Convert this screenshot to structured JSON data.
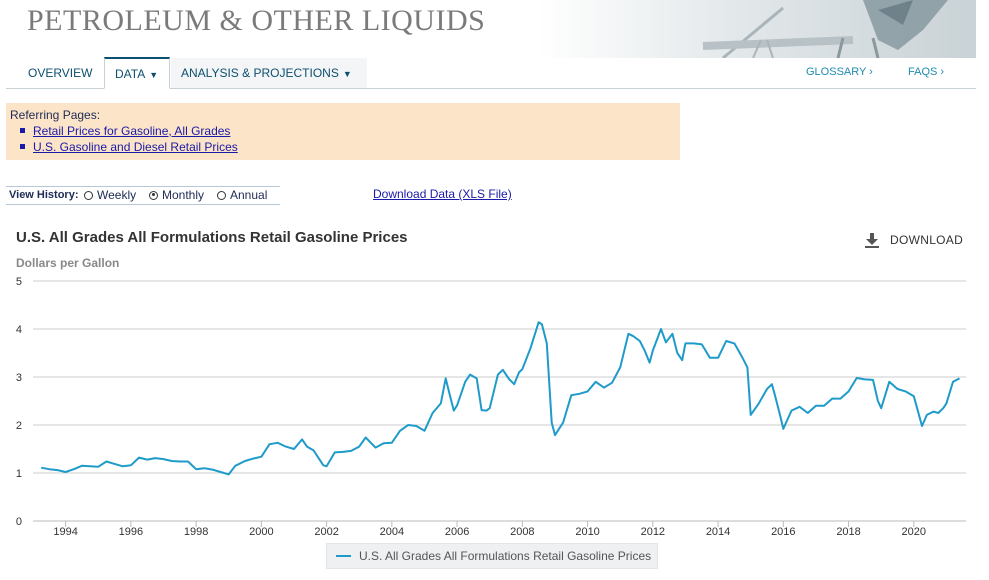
{
  "banner": {
    "title": "PETROLEUM & OTHER LIQUIDS"
  },
  "nav": {
    "tabs": [
      "OVERVIEW",
      "DATA",
      "ANALYSIS & PROJECTIONS"
    ],
    "glossary": "GLOSSARY ›",
    "faqs": "FAQS ›"
  },
  "referring": {
    "heading": "Referring Pages:",
    "links": [
      "Retail Prices for Gasoline, All Grades",
      "U.S. Gasoline and Diesel Retail Prices"
    ]
  },
  "history": {
    "label": "View History:",
    "options": [
      "Weekly",
      "Monthly",
      "Annual"
    ],
    "selected": "Monthly"
  },
  "download_data": "Download Data (XLS File)",
  "download_button": "DOWNLOAD",
  "colors": {
    "series": "#1f9bc9",
    "accent": "#0d4f6e"
  },
  "chart_data": {
    "type": "line",
    "title": "U.S. All Grades All Formulations Retail Gasoline Prices",
    "ylabel": "Dollars per Gallon",
    "xlabel": "",
    "ylim": [
      0,
      5
    ],
    "xlim": [
      1993.0,
      2021.6
    ],
    "yticks": [
      0,
      1,
      2,
      3,
      4,
      5
    ],
    "xticks": [
      1994,
      1996,
      1998,
      2000,
      2002,
      2004,
      2006,
      2008,
      2010,
      2012,
      2014,
      2016,
      2018,
      2020
    ],
    "grid": true,
    "legend": "bottom-center",
    "series": [
      {
        "name": "U.S. All Grades All Formulations Retail Gasoline Prices",
        "x": [
          1993.25,
          1993.5,
          1993.75,
          1994.0,
          1994.25,
          1994.5,
          1994.75,
          1995.0,
          1995.25,
          1995.5,
          1995.75,
          1996.0,
          1996.25,
          1996.5,
          1996.75,
          1997.0,
          1997.25,
          1997.5,
          1997.75,
          1998.0,
          1998.25,
          1998.5,
          1998.75,
          1999.0,
          1999.2,
          1999.5,
          1999.75,
          2000.0,
          2000.25,
          2000.5,
          2000.75,
          2001.0,
          2001.25,
          2001.4,
          2001.6,
          2001.9,
          2002.0,
          2002.25,
          2002.5,
          2002.75,
          2003.0,
          2003.2,
          2003.5,
          2003.75,
          2004.0,
          2004.25,
          2004.5,
          2004.75,
          2005.0,
          2005.25,
          2005.5,
          2005.65,
          2005.75,
          2005.9,
          2006.0,
          2006.25,
          2006.4,
          2006.6,
          2006.75,
          2006.9,
          2007.0,
          2007.25,
          2007.4,
          2007.6,
          2007.75,
          2007.9,
          2008.0,
          2008.25,
          2008.5,
          2008.6,
          2008.75,
          2008.9,
          2009.0,
          2009.25,
          2009.5,
          2009.75,
          2010.0,
          2010.25,
          2010.5,
          2010.75,
          2011.0,
          2011.25,
          2011.4,
          2011.6,
          2011.75,
          2011.9,
          2012.0,
          2012.25,
          2012.4,
          2012.6,
          2012.75,
          2012.9,
          2013.0,
          2013.25,
          2013.5,
          2013.75,
          2014.0,
          2014.25,
          2014.5,
          2014.75,
          2014.9,
          2015.0,
          2015.25,
          2015.5,
          2015.65,
          2015.75,
          2015.9,
          2016.0,
          2016.25,
          2016.5,
          2016.75,
          2017.0,
          2017.25,
          2017.5,
          2017.75,
          2018.0,
          2018.25,
          2018.5,
          2018.75,
          2018.9,
          2019.0,
          2019.25,
          2019.5,
          2019.75,
          2020.0,
          2020.25,
          2020.4,
          2020.6,
          2020.75,
          2020.9,
          2021.0,
          2021.2,
          2021.4
        ],
        "values": [
          1.11,
          1.08,
          1.06,
          1.02,
          1.08,
          1.15,
          1.14,
          1.13,
          1.24,
          1.19,
          1.14,
          1.16,
          1.32,
          1.28,
          1.31,
          1.29,
          1.25,
          1.24,
          1.24,
          1.08,
          1.1,
          1.07,
          1.02,
          0.97,
          1.15,
          1.25,
          1.3,
          1.34,
          1.6,
          1.63,
          1.55,
          1.5,
          1.7,
          1.55,
          1.47,
          1.16,
          1.14,
          1.43,
          1.44,
          1.46,
          1.55,
          1.74,
          1.53,
          1.62,
          1.63,
          1.88,
          2.0,
          1.98,
          1.88,
          2.25,
          2.45,
          2.97,
          2.7,
          2.3,
          2.41,
          2.9,
          3.05,
          2.97,
          2.31,
          2.3,
          2.35,
          3.05,
          3.15,
          2.95,
          2.85,
          3.1,
          3.16,
          3.6,
          4.14,
          4.1,
          3.7,
          2.05,
          1.79,
          2.05,
          2.62,
          2.65,
          2.7,
          2.9,
          2.78,
          2.88,
          3.2,
          3.9,
          3.85,
          3.75,
          3.55,
          3.3,
          3.55,
          4.0,
          3.72,
          3.9,
          3.5,
          3.35,
          3.7,
          3.7,
          3.68,
          3.4,
          3.4,
          3.75,
          3.7,
          3.4,
          3.2,
          2.21,
          2.45,
          2.75,
          2.85,
          2.6,
          2.2,
          1.92,
          2.3,
          2.38,
          2.25,
          2.4,
          2.4,
          2.55,
          2.55,
          2.7,
          2.98,
          2.95,
          2.94,
          2.5,
          2.35,
          2.9,
          2.75,
          2.7,
          2.6,
          1.98,
          2.21,
          2.28,
          2.25,
          2.35,
          2.45,
          2.9,
          2.97
        ]
      }
    ]
  }
}
